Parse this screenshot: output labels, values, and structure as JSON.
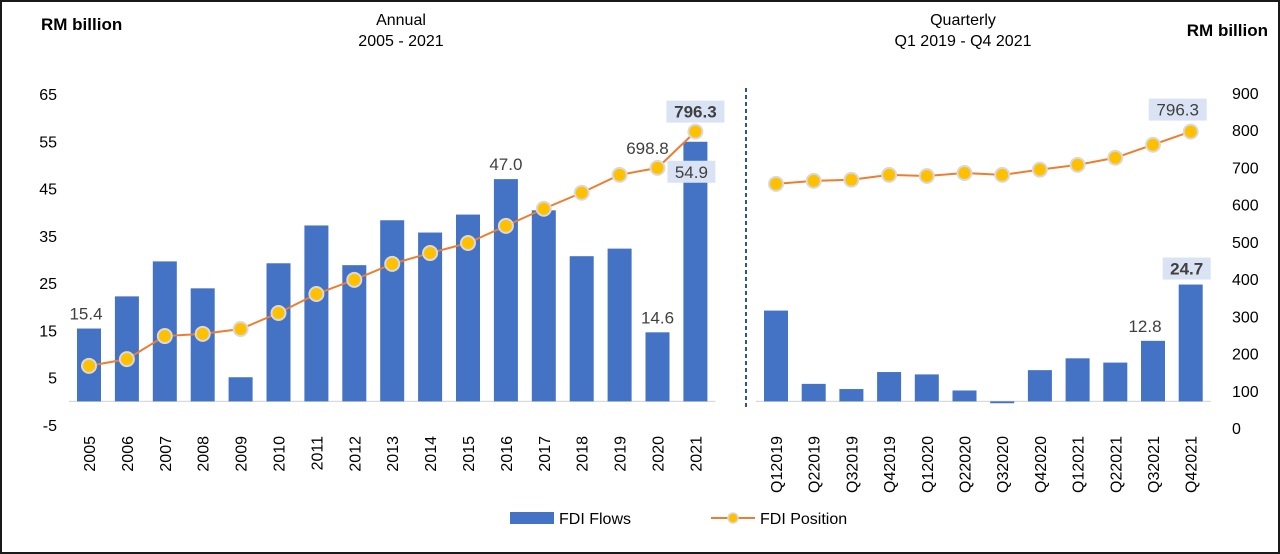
{
  "chart_data": {
    "type": "bar+line",
    "dual_axis": true,
    "left_axis": {
      "label": "RM billion",
      "range": [
        -5,
        65
      ],
      "ticks": [
        -5,
        5,
        15,
        25,
        35,
        45,
        55,
        65
      ],
      "tick_labels": [
        "-5",
        "5",
        "15",
        "25",
        "35",
        "45",
        "55",
        "65"
      ]
    },
    "right_axis": {
      "label": "RM billion",
      "range": [
        0,
        900
      ],
      "ticks": [
        0,
        100,
        200,
        300,
        400,
        500,
        600,
        700,
        800,
        900
      ],
      "tick_labels": [
        "0",
        "100",
        "200",
        "300",
        "400",
        "500",
        "600",
        "700",
        "800",
        "900"
      ]
    },
    "grid": false,
    "legend_position": "bottom-center",
    "legend": [
      {
        "name": "FDI Flows",
        "kind": "bar",
        "color": "#4472C4"
      },
      {
        "name": "FDI Position",
        "kind": "line-marker",
        "color": "#ED7D31",
        "marker_color": "#FFC000"
      }
    ],
    "panels": [
      {
        "title_line1": "Annual",
        "title_line2": "2005 - 2021",
        "categories": [
          "2005",
          "2006",
          "2007",
          "2008",
          "2009",
          "2010",
          "2011",
          "2012",
          "2013",
          "2014",
          "2015",
          "2016",
          "2017",
          "2018",
          "2019",
          "2020",
          "2021"
        ],
        "series": [
          {
            "name": "FDI Flows",
            "axis": "left",
            "type": "bar",
            "values": [
              15.4,
              22.2,
              29.6,
              23.9,
              5.1,
              29.2,
              37.2,
              28.8,
              38.3,
              35.7,
              39.5,
              47.0,
              40.4,
              30.7,
              32.3,
              14.6,
              54.9
            ]
          },
          {
            "name": "FDI Position",
            "axis": "right",
            "type": "line",
            "values": [
              167,
              185,
              247,
              253,
              266,
              309,
              360,
              398,
              441,
              470,
              497,
              543,
              589,
              632,
              680,
              698.8,
              796.3
            ]
          }
        ],
        "annotations": [
          {
            "series": "FDI Flows",
            "index": 0,
            "text": "15.4",
            "style": "plain"
          },
          {
            "series": "FDI Flows",
            "index": 11,
            "text": "47.0",
            "style": "plain"
          },
          {
            "series": "FDI Flows",
            "index": 15,
            "text": "14.6",
            "style": "plain"
          },
          {
            "series": "FDI Flows",
            "index": 16,
            "text": "54.9",
            "style": "boxed"
          },
          {
            "series": "FDI Position",
            "index": 15,
            "text": "698.8",
            "style": "plain"
          },
          {
            "series": "FDI Position",
            "index": 16,
            "text": "796.3",
            "style": "boxed-bold"
          }
        ]
      },
      {
        "title_line1": "Quarterly",
        "title_line2": "Q1 2019 - Q4 2021",
        "categories": [
          "Q12019",
          "Q22019",
          "Q32019",
          "Q42019",
          "Q12020",
          "Q22020",
          "Q32020",
          "Q42020",
          "Q12021",
          "Q22021",
          "Q32021",
          "Q42021"
        ],
        "series": [
          {
            "name": "FDI Flows",
            "axis": "left",
            "type": "bar",
            "values": [
              19.2,
              3.7,
              2.6,
              6.2,
              5.7,
              2.3,
              -0.4,
              6.6,
              9.1,
              8.2,
              12.8,
              24.7
            ]
          },
          {
            "name": "FDI Position",
            "axis": "right",
            "type": "line",
            "values": [
              656,
              664,
              667,
              680,
              677,
              685,
              680,
              694,
              707,
              726,
              761,
              796.3
            ]
          }
        ],
        "annotations": [
          {
            "series": "FDI Flows",
            "index": 10,
            "text": "12.8",
            "style": "plain"
          },
          {
            "series": "FDI Flows",
            "index": 11,
            "text": "24.7",
            "style": "boxed-bold"
          },
          {
            "series": "FDI Position",
            "index": 11,
            "text": "796.3",
            "style": "boxed"
          }
        ]
      }
    ],
    "colors": {
      "bar": "#4472C4",
      "line": "#ED7D31",
      "marker": "#FFC000",
      "marker_edge": "#D9D9D9",
      "label_box": "#DAE3F3",
      "divider": "#2F5597",
      "baseline": "#D9D9D9"
    }
  }
}
